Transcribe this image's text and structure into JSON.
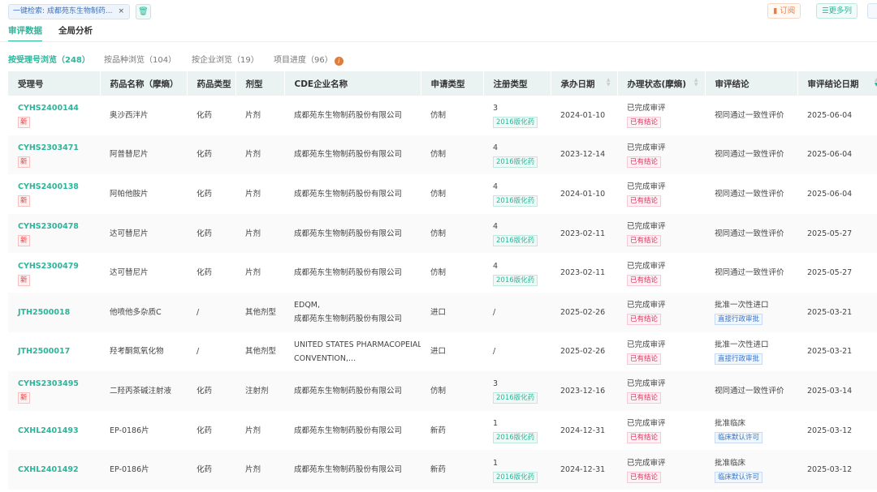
{
  "search_chip": {
    "label": "一键检索: 成都苑东生物制药...",
    "close": "×"
  },
  "toolbar": {
    "subscribe": "订阅",
    "more_columns": "更多列"
  },
  "tabs": [
    "审评数据",
    "全局分析"
  ],
  "subtabs": [
    "按受理号浏览（248）",
    "按品种浏览（104）",
    "按企业浏览（19）",
    "项目进度（96）"
  ],
  "columns": [
    "受理号",
    "药品名称（摩熵）",
    "药品类型",
    "剂型",
    "CDE企业名称",
    "申请类型",
    "注册类型",
    "承办日期",
    "办理状态(摩熵)",
    "审评结论",
    "审评结论日期"
  ],
  "rows": [
    {
      "id": "CYHS2400144",
      "new": "新",
      "name": "奥沙西泮片",
      "type": "化药",
      "form": "片剂",
      "company": "成都苑东生物制药股份有限公司",
      "company2": "",
      "apply": "仿制",
      "reg": "3",
      "reg_tag": "2016版化药",
      "date": "2024-01-10",
      "status": "已完成审评",
      "status_tag": "已有结论",
      "conclusion": "视同通过一致性评价",
      "conc_tag": "",
      "conc_date": "2025-06-04"
    },
    {
      "id": "CYHS2303471",
      "new": "新",
      "name": "阿普替尼片",
      "type": "化药",
      "form": "片剂",
      "company": "成都苑东生物制药股份有限公司",
      "company2": "",
      "apply": "仿制",
      "reg": "4",
      "reg_tag": "2016版化药",
      "date": "2023-12-14",
      "status": "已完成审评",
      "status_tag": "已有结论",
      "conclusion": "视同通过一致性评价",
      "conc_tag": "",
      "conc_date": "2025-06-04"
    },
    {
      "id": "CYHS2400138",
      "new": "新",
      "name": "阿帕他胺片",
      "type": "化药",
      "form": "片剂",
      "company": "成都苑东生物制药股份有限公司",
      "company2": "",
      "apply": "仿制",
      "reg": "4",
      "reg_tag": "2016版化药",
      "date": "2024-01-10",
      "status": "已完成审评",
      "status_tag": "已有结论",
      "conclusion": "视同通过一致性评价",
      "conc_tag": "",
      "conc_date": "2025-06-04"
    },
    {
      "id": "CYHS2300478",
      "new": "新",
      "name": "达可替尼片",
      "type": "化药",
      "form": "片剂",
      "company": "成都苑东生物制药股份有限公司",
      "company2": "",
      "apply": "仿制",
      "reg": "4",
      "reg_tag": "2016版化药",
      "date": "2023-02-11",
      "status": "已完成审评",
      "status_tag": "已有结论",
      "conclusion": "视同通过一致性评价",
      "conc_tag": "",
      "conc_date": "2025-05-27"
    },
    {
      "id": "CYHS2300479",
      "new": "新",
      "name": "达可替尼片",
      "type": "化药",
      "form": "片剂",
      "company": "成都苑东生物制药股份有限公司",
      "company2": "",
      "apply": "仿制",
      "reg": "4",
      "reg_tag": "2016版化药",
      "date": "2023-02-11",
      "status": "已完成审评",
      "status_tag": "已有结论",
      "conclusion": "视同通过一致性评价",
      "conc_tag": "",
      "conc_date": "2025-05-27"
    },
    {
      "id": "JTH2500018",
      "new": "",
      "name": "他喷他多杂质C",
      "type": "/",
      "form": "其他剂型",
      "company": "EDQM,",
      "company2": "成都苑东生物制药股份有限公司",
      "apply": "进口",
      "reg": "/",
      "reg_tag": "",
      "date": "2025-02-26",
      "status": "已完成审评",
      "status_tag": "已有结论",
      "conclusion": "批准一次性进口",
      "conc_tag": "直接行政审批",
      "conc_date": "2025-03-21"
    },
    {
      "id": "JTH2500017",
      "new": "",
      "name": "羟考酮氮氧化物",
      "type": "/",
      "form": "其他剂型",
      "company": "UNITED STATES PHARMACOPEIAL",
      "company2": "CONVENTION,...",
      "apply": "进口",
      "reg": "/",
      "reg_tag": "",
      "date": "2025-02-26",
      "status": "已完成审评",
      "status_tag": "已有结论",
      "conclusion": "批准一次性进口",
      "conc_tag": "直接行政审批",
      "conc_date": "2025-03-21"
    },
    {
      "id": "CYHS2303495",
      "new": "新",
      "name": "二羟丙茶碱注射液",
      "type": "化药",
      "form": "注射剂",
      "company": "成都苑东生物制药股份有限公司",
      "company2": "",
      "apply": "仿制",
      "reg": "3",
      "reg_tag": "2016版化药",
      "date": "2023-12-16",
      "status": "已完成审评",
      "status_tag": "已有结论",
      "conclusion": "视同通过一致性评价",
      "conc_tag": "",
      "conc_date": "2025-03-14"
    },
    {
      "id": "CXHL2401493",
      "new": "",
      "name": "EP-0186片",
      "type": "化药",
      "form": "片剂",
      "company": "成都苑东生物制药股份有限公司",
      "company2": "",
      "apply": "新药",
      "reg": "1",
      "reg_tag": "2016版化药",
      "date": "2024-12-31",
      "status": "已完成审评",
      "status_tag": "已有结论",
      "conclusion": "批准临床",
      "conc_tag": "临床默认许可",
      "conc_date": "2025-03-12"
    },
    {
      "id": "CXHL2401492",
      "new": "",
      "name": "EP-0186片",
      "type": "化药",
      "form": "片剂",
      "company": "成都苑东生物制药股份有限公司",
      "company2": "",
      "apply": "新药",
      "reg": "1",
      "reg_tag": "2016版化药",
      "date": "2024-12-31",
      "status": "已完成审评",
      "status_tag": "已有结论",
      "conclusion": "批准临床",
      "conc_tag": "临床默认许可",
      "conc_date": "2025-03-12"
    }
  ]
}
